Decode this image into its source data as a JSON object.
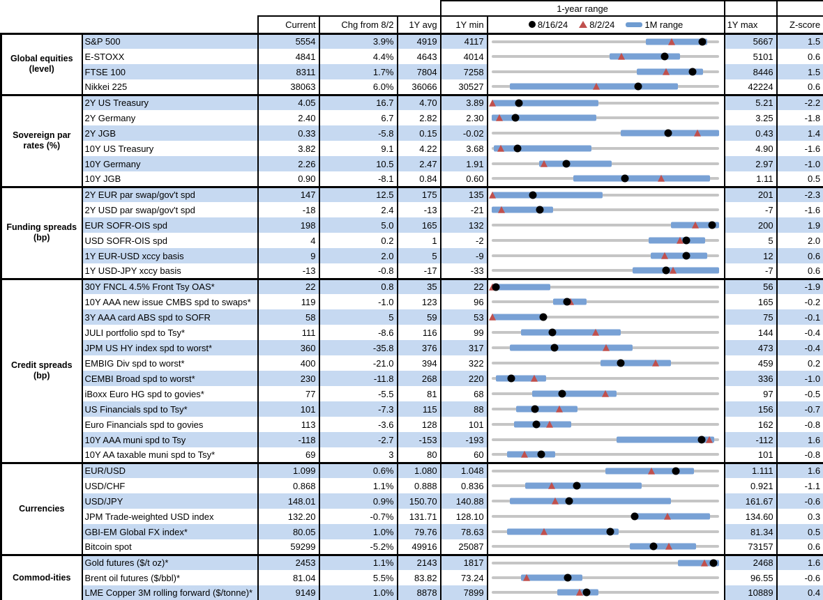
{
  "chart_data": {
    "type": "table",
    "title": "1-year range",
    "columns": [
      "Current",
      "Chg from 8/2",
      "1Y avg",
      "1Y min",
      "1-year range",
      "1Y max",
      "Z-score"
    ],
    "legend": [
      "8/16/24",
      "8/2/24",
      "1M range"
    ],
    "legend_icons": [
      "dot-icon",
      "triangle-icon",
      "bar-icon"
    ],
    "colors": {
      "stripe": "#c6d9f1",
      "month_bar": "#78a1d5",
      "track": "#c5c5c5",
      "dot": "#000000",
      "triangle": "#c0504d"
    },
    "marker_meaning": {
      "dot": "8/16/24 value",
      "triangle": "8/2/24 value",
      "bar": "1M range",
      "fractions": "position within 1Y min..1Y max"
    },
    "sections": [
      {
        "category": "Global equities (level)",
        "rows": [
          {
            "label": "S&P 500",
            "current": "5554",
            "chg": "3.9%",
            "avg": "4919",
            "min": "4117",
            "max": "5667",
            "z": "1.5",
            "dot": 0.927,
            "tri": 0.793,
            "bar": [
              0.68,
              0.95
            ]
          },
          {
            "label": "E-STOXX",
            "current": "4841",
            "chg": "4.4%",
            "avg": "4643",
            "min": "4014",
            "max": "5101",
            "z": "0.6",
            "dot": 0.761,
            "tri": 0.573,
            "bar": [
              0.52,
              0.83
            ]
          },
          {
            "label": "FTSE 100",
            "current": "8311",
            "chg": "1.7%",
            "avg": "7804",
            "min": "7258",
            "max": "8446",
            "z": "1.5",
            "dot": 0.886,
            "tri": 0.769,
            "bar": [
              0.64,
              0.93
            ]
          },
          {
            "label": "Nikkei 225",
            "current": "38063",
            "chg": "6.0%",
            "avg": "36066",
            "min": "30527",
            "max": "42224",
            "z": "0.6",
            "dot": 0.644,
            "tri": 0.46,
            "bar": [
              0.08,
              0.82
            ]
          }
        ]
      },
      {
        "category": "Sovereign par rates (%)",
        "rows": [
          {
            "label": "2Y US Treasury",
            "current": "4.05",
            "chg": "16.7",
            "avg": "4.70",
            "min": "3.89",
            "max": "5.21",
            "z": "-2.2",
            "dot": 0.121,
            "tri": 0.005,
            "bar": [
              0.0,
              0.47
            ]
          },
          {
            "label": "2Y Germany",
            "current": "2.40",
            "chg": "6.7",
            "avg": "2.82",
            "min": "2.30",
            "max": "3.25",
            "z": "-1.8",
            "dot": 0.105,
            "tri": 0.035,
            "bar": [
              0.0,
              0.46
            ]
          },
          {
            "label": "2Y JGB",
            "current": "0.33",
            "chg": "-5.8",
            "avg": "0.15",
            "min": "-0.02",
            "max": "0.43",
            "z": "1.4",
            "dot": 0.778,
            "tri": 0.907,
            "bar": [
              0.57,
              1.0
            ]
          },
          {
            "label": "10Y US Treasury",
            "current": "3.82",
            "chg": "9.1",
            "avg": "4.22",
            "min": "3.68",
            "max": "4.90",
            "z": "-1.6",
            "dot": 0.115,
            "tri": 0.04,
            "bar": [
              0.01,
              0.44
            ]
          },
          {
            "label": "10Y Germany",
            "current": "2.26",
            "chg": "10.5",
            "avg": "2.47",
            "min": "1.91",
            "max": "2.97",
            "z": "-1.0",
            "dot": 0.33,
            "tri": 0.231,
            "bar": [
              0.21,
              0.53
            ]
          },
          {
            "label": "10Y JGB",
            "current": "0.90",
            "chg": "-8.1",
            "avg": "0.84",
            "min": "0.60",
            "max": "1.11",
            "z": "0.5",
            "dot": 0.588,
            "tri": 0.747,
            "bar": [
              0.36,
              0.96
            ]
          }
        ]
      },
      {
        "category": "Funding spreads (bp)",
        "rows": [
          {
            "label": "2Y EUR par swap/gov't spd",
            "current": "147",
            "chg": "12.5",
            "avg": "175",
            "min": "135",
            "max": "201",
            "z": "-2.3",
            "dot": 0.182,
            "tri": 0.005,
            "bar": [
              0.0,
              0.49
            ]
          },
          {
            "label": "2Y USD par swap/gov't spd",
            "current": "-18",
            "chg": "2.4",
            "avg": "-13",
            "min": "-21",
            "max": "-7",
            "z": "-1.6",
            "dot": 0.214,
            "tri": 0.043,
            "bar": [
              0.0,
              0.27
            ]
          },
          {
            "label": "EUR SOFR-OIS spd",
            "current": "198",
            "chg": "5.0",
            "avg": "165",
            "min": "132",
            "max": "200",
            "z": "1.9",
            "dot": 0.971,
            "tri": 0.897,
            "bar": [
              0.79,
              1.0
            ]
          },
          {
            "label": "USD SOFR-OIS spd",
            "current": "4",
            "chg": "0.2",
            "avg": "1",
            "min": "-2",
            "max": "5",
            "z": "2.0",
            "dot": 0.857,
            "tri": 0.829,
            "bar": [
              0.69,
              0.94
            ]
          },
          {
            "label": "1Y EUR-USD xccy basis",
            "current": "9",
            "chg": "2.0",
            "avg": "5",
            "min": "-9",
            "max": "12",
            "z": "0.6",
            "dot": 0.857,
            "tri": 0.762,
            "bar": [
              0.7,
              0.95
            ]
          },
          {
            "label": "1Y USD-JPY xccy basis",
            "current": "-13",
            "chg": "-0.8",
            "avg": "-17",
            "min": "-33",
            "max": "-7",
            "z": "0.6",
            "dot": 0.769,
            "tri": 0.8,
            "bar": [
              0.62,
              1.0
            ]
          }
        ]
      },
      {
        "category": "Credit spreads (bp)",
        "rows": [
          {
            "label": "30Y FNCL 4.5% Front Tsy OAS*",
            "current": "22",
            "chg": "0.8",
            "avg": "35",
            "min": "22",
            "max": "56",
            "z": "-1.9",
            "dot": 0.02,
            "tri": 0.005,
            "bar": [
              0.0,
              0.26
            ]
          },
          {
            "label": "10Y AAA new issue CMBS spd to swaps*",
            "current": "119",
            "chg": "-1.0",
            "avg": "123",
            "min": "96",
            "max": "165",
            "z": "-0.2",
            "dot": 0.333,
            "tri": 0.348,
            "bar": [
              0.27,
              0.42
            ]
          },
          {
            "label": "3Y AAA card ABS spd to SOFR",
            "current": "58",
            "chg": "5",
            "avg": "59",
            "min": "53",
            "max": "75",
            "z": "-0.1",
            "dot": 0.227,
            "tri": 0.005,
            "bar": [
              0.0,
              0.23
            ]
          },
          {
            "label": "JULI portfolio spd to Tsy*",
            "current": "111",
            "chg": "-8.6",
            "avg": "116",
            "min": "99",
            "max": "144",
            "z": "-0.4",
            "dot": 0.267,
            "tri": 0.458,
            "bar": [
              0.13,
              0.57
            ]
          },
          {
            "label": "JPM US HY index spd to worst*",
            "current": "360",
            "chg": "-35.8",
            "avg": "376",
            "min": "317",
            "max": "473",
            "z": "-0.4",
            "dot": 0.276,
            "tri": 0.505,
            "bar": [
              0.08,
              0.62
            ]
          },
          {
            "label": "EMBIG Div spd to worst*",
            "current": "400",
            "chg": "-21.0",
            "avg": "394",
            "min": "322",
            "max": "459",
            "z": "0.2",
            "dot": 0.569,
            "tri": 0.723,
            "bar": [
              0.48,
              0.79
            ]
          },
          {
            "label": "CEMBI Broad spd to worst*",
            "current": "230",
            "chg": "-11.8",
            "avg": "268",
            "min": "220",
            "max": "336",
            "z": "-1.0",
            "dot": 0.086,
            "tri": 0.188,
            "bar": [
              0.02,
              0.24
            ]
          },
          {
            "label": "iBoxx Euro HG spd to govies*",
            "current": "77",
            "chg": "-5.5",
            "avg": "81",
            "min": "68",
            "max": "97",
            "z": "-0.5",
            "dot": 0.31,
            "tri": 0.5,
            "bar": [
              0.18,
              0.55
            ]
          },
          {
            "label": "US Financials spd to Tsy*",
            "current": "101",
            "chg": "-7.3",
            "avg": "115",
            "min": "88",
            "max": "156",
            "z": "-0.7",
            "dot": 0.191,
            "tri": 0.299,
            "bar": [
              0.11,
              0.38
            ]
          },
          {
            "label": "Euro Financials spd to govies",
            "current": "113",
            "chg": "-3.6",
            "avg": "128",
            "min": "101",
            "max": "162",
            "z": "-0.8",
            "dot": 0.197,
            "tri": 0.256,
            "bar": [
              0.1,
              0.35
            ]
          },
          {
            "label": "10Y AAA muni spd to Tsy",
            "current": "-118",
            "chg": "-2.7",
            "avg": "-153",
            "min": "-193",
            "max": "-112",
            "z": "1.6",
            "dot": 0.926,
            "tri": 0.959,
            "bar": [
              0.55,
              0.98
            ]
          },
          {
            "label": "10Y AA taxable muni spd to Tsy*",
            "current": "69",
            "chg": "3",
            "avg": "80",
            "min": "60",
            "max": "101",
            "z": "-0.8",
            "dot": 0.22,
            "tri": 0.146,
            "bar": [
              0.07,
              0.28
            ]
          }
        ]
      },
      {
        "category": "Currencies",
        "rows": [
          {
            "label": "EUR/USD",
            "current": "1.099",
            "chg": "0.6%",
            "avg": "1.080",
            "min": "1.048",
            "max": "1.111",
            "z": "1.6",
            "dot": 0.81,
            "tri": 0.705,
            "bar": [
              0.5,
              0.89
            ]
          },
          {
            "label": "USD/CHF",
            "current": "0.868",
            "chg": "1.1%",
            "avg": "0.888",
            "min": "0.836",
            "max": "0.921",
            "z": "-1.1",
            "dot": 0.376,
            "tri": 0.266,
            "bar": [
              0.15,
              0.66
            ]
          },
          {
            "label": "USD/JPY",
            "current": "148.01",
            "chg": "0.9%",
            "avg": "150.70",
            "min": "140.88",
            "max": "161.67",
            "z": "-0.6",
            "dot": 0.343,
            "tri": 0.279,
            "bar": [
              0.08,
              0.79
            ]
          },
          {
            "label": "JPM Trade-weighted USD index",
            "current": "132.20",
            "chg": "-0.7%",
            "avg": "131.71",
            "min": "128.10",
            "max": "134.60",
            "z": "0.3",
            "dot": 0.631,
            "tri": 0.774,
            "bar": [
              0.62,
              0.96
            ]
          },
          {
            "label": "GBI-EM Global FX index*",
            "current": "80.05",
            "chg": "1.0%",
            "avg": "79.76",
            "min": "78.63",
            "max": "81.34",
            "z": "0.5",
            "dot": 0.524,
            "tri": 0.232,
            "bar": [
              0.07,
              0.56
            ]
          },
          {
            "label": "Bitcoin spot",
            "current": "59299",
            "chg": "-5.2%",
            "avg": "49916",
            "min": "25087",
            "max": "73157",
            "z": "0.6",
            "dot": 0.712,
            "tri": 0.779,
            "bar": [
              0.61,
              0.9
            ]
          }
        ]
      },
      {
        "category": "Commod-ities",
        "rows": [
          {
            "label": "Gold futures ($/t oz)*",
            "current": "2453",
            "chg": "1.1%",
            "avg": "2143",
            "min": "1817",
            "max": "2468",
            "z": "1.6",
            "dot": 0.977,
            "tri": 0.936,
            "bar": [
              0.82,
              1.0
            ]
          },
          {
            "label": "Brent oil futures ($/bbl)*",
            "current": "81.04",
            "chg": "5.5%",
            "avg": "83.82",
            "min": "73.24",
            "max": "96.55",
            "z": "-0.6",
            "dot": 0.335,
            "tri": 0.154,
            "bar": [
              0.13,
              0.4
            ]
          },
          {
            "label": "LME Copper 3M rolling forward ($/tonne)*",
            "current": "9149",
            "chg": "1.0%",
            "avg": "8878",
            "min": "7899",
            "max": "10889",
            "z": "0.4",
            "dot": 0.418,
            "tri": 0.388,
            "bar": [
              0.29,
              0.47
            ]
          }
        ]
      }
    ]
  }
}
